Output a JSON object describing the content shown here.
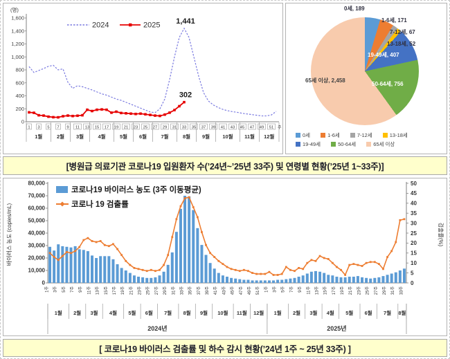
{
  "captions": {
    "top": "[병원급 의료기관 코로나19 입원환자 수(’24년~’25년 33주) 및 연령별 현황(’25년 1~33주)]",
    "bottom": "[ 코로나19 바이러스 검출률 및 하수 감시 현황(’24년 1주 ~ 25년 33주) ]"
  },
  "colors": {
    "band_bg": "#FFFFCC",
    "bar_blue": "#5B9BD5",
    "line_orange": "#ED7D31",
    "line_2024": "#7878DF",
    "line_2025": "#E60000"
  },
  "chart_data": [
    {
      "id": "hospitalized-weekly",
      "type": "line",
      "title": "병원급 의료기관 코로나19 입원환자 수",
      "unit_label": "(명)",
      "x_unit_label": "주",
      "ylim": [
        0,
        1600
      ],
      "ytick_step": 200,
      "legend_position": "top-left-inside",
      "series": [
        {
          "name": "2024",
          "color": "#7878DF",
          "style": "dashed",
          "values": [
            850,
            760,
            790,
            820,
            855,
            870,
            800,
            815,
            610,
            515,
            555,
            540,
            515,
            490,
            460,
            430,
            410,
            380,
            350,
            330,
            300,
            270,
            240,
            210,
            180,
            150,
            140,
            200,
            350,
            650,
            1000,
            1300,
            1441,
            1300,
            1000,
            700,
            450,
            320,
            260,
            220,
            190,
            170,
            155,
            145,
            130,
            120,
            110,
            100,
            90,
            90,
            105,
            160
          ]
        },
        {
          "name": "2025",
          "color": "#E60000",
          "style": "solid-marker",
          "values": [
            145,
            138,
            100,
            95,
            78,
            70,
            68,
            85,
            95,
            88,
            93,
            100,
            185,
            165,
            185,
            190,
            185,
            140,
            155,
            135,
            130,
            125,
            120,
            125,
            115,
            105,
            95,
            90,
            110,
            140,
            180,
            240,
            302
          ]
        }
      ],
      "annotations": [
        {
          "text": "1,441",
          "series": "2024",
          "week": 33
        },
        {
          "text": "302",
          "series": "2025",
          "week": 33
        }
      ],
      "months": [
        {
          "label": "1월",
          "weeks": 5
        },
        {
          "label": "2월",
          "weeks": 4
        },
        {
          "label": "3월",
          "weeks": 4
        },
        {
          "label": "4월",
          "weeks": 5
        },
        {
          "label": "5월",
          "weeks": 4
        },
        {
          "label": "6월",
          "weeks": 4
        },
        {
          "label": "7월",
          "weeks": 5
        },
        {
          "label": "8월",
          "weeks": 4
        },
        {
          "label": "9월",
          "weeks": 4
        },
        {
          "label": "10월",
          "weeks": 5
        },
        {
          "label": "11월",
          "weeks": 4
        },
        {
          "label": "12월",
          "weeks": 4
        }
      ]
    },
    {
      "id": "age-distribution",
      "type": "pie",
      "title": "연령별 현황(’25년 1~33주)",
      "slices": [
        {
          "label": "0세",
          "value": 189,
          "color": "#5B9BD5"
        },
        {
          "label": "1-6세",
          "value": 171,
          "color": "#ED7D31"
        },
        {
          "label": "7-12세",
          "value": 67,
          "color": "#A5A5A5"
        },
        {
          "label": "13-18세",
          "value": 52,
          "color": "#FFC000"
        },
        {
          "label": "19-49세",
          "value": 407,
          "color": "#4472C4"
        },
        {
          "label": "50-64세",
          "value": 756,
          "color": "#70AD47"
        },
        {
          "label": "65세 이상",
          "value": 2458,
          "color": "#F8CBAD"
        }
      ],
      "legend_rows": [
        4,
        3
      ]
    },
    {
      "id": "wastewater-surveillance",
      "type": "combo-bar-line",
      "week_suffix": "주",
      "left_axis": {
        "label": "바이러스 농도 (copies/mL)",
        "lim": [
          0,
          80000
        ],
        "step": 10000
      },
      "right_axis": {
        "label": "검출률(%)",
        "lim": [
          0,
          50
        ],
        "step": 5
      },
      "bar_series": {
        "name": "코로나19 바이러스 농도 (3주 이동평균)",
        "color": "#5B9BD5",
        "axis": "left",
        "values": [
          29000,
          26000,
          31000,
          29500,
          29000,
          28500,
          29500,
          27000,
          26500,
          25500,
          22000,
          20000,
          21500,
          21500,
          21500,
          19000,
          15000,
          12000,
          10000,
          8000,
          6000,
          5000,
          4500,
          4000,
          4000,
          4500,
          6000,
          9000,
          14500,
          24500,
          41000,
          59500,
          70000,
          69500,
          58500,
          44000,
          30500,
          22500,
          16000,
          11500,
          8000,
          6000,
          5000,
          4000,
          3500,
          3000,
          2500,
          2500,
          2000,
          2000,
          2000,
          2000,
          2000,
          2000,
          2500,
          2500,
          3000,
          3500,
          4000,
          5000,
          6000,
          7500,
          9000,
          9500,
          9000,
          8000,
          6500,
          6000,
          5000,
          4500,
          4500,
          5000,
          5000,
          5500,
          4500,
          4000,
          3500,
          4000,
          4500,
          5500,
          6500,
          7500,
          8500,
          10000,
          11500
        ]
      },
      "line_series": {
        "name": "코로나 19 검출률",
        "color": "#ED7D31",
        "axis": "right",
        "values": [
          15,
          13,
          11.5,
          13.5,
          15.5,
          15,
          16,
          18,
          21.5,
          22.5,
          21,
          20.5,
          21,
          19,
          18.5,
          19.5,
          17,
          14,
          11,
          9,
          7.5,
          7,
          6.5,
          6,
          6.5,
          6,
          6.5,
          9,
          14,
          23,
          32,
          38.5,
          42.5,
          43,
          38,
          33,
          25.5,
          19,
          15,
          13,
          11,
          9.5,
          8,
          7,
          6.5,
          6,
          6.5,
          6,
          5,
          4.5,
          4.5,
          4.5,
          5.5,
          4,
          4,
          4.5,
          8,
          6.5,
          6,
          7.5,
          7,
          10,
          11.5,
          11,
          13.5,
          12.5,
          12,
          10,
          8,
          6.5,
          4,
          9,
          9.5,
          9,
          8.5,
          10,
          10.5,
          10.5,
          9.5,
          7,
          13,
          16,
          20.5,
          31.5,
          32
        ]
      },
      "x_groups": [
        {
          "year": "2024년",
          "months": [
            {
              "label": "1월",
              "weeks": 5
            },
            {
              "label": "2월",
              "weeks": 4
            },
            {
              "label": "3월",
              "weeks": 4
            },
            {
              "label": "4월",
              "weeks": 5
            },
            {
              "label": "5월",
              "weeks": 4
            },
            {
              "label": "6월",
              "weeks": 4
            },
            {
              "label": "7월",
              "weeks": 5
            },
            {
              "label": "8월",
              "weeks": 4
            },
            {
              "label": "9월",
              "weeks": 4
            },
            {
              "label": "10월",
              "weeks": 5
            },
            {
              "label": "11월",
              "weeks": 4
            },
            {
              "label": "12월",
              "weeks": 4
            }
          ]
        },
        {
          "year": "2025년",
          "months": [
            {
              "label": "1월",
              "weeks": 5
            },
            {
              "label": "2월",
              "weeks": 4
            },
            {
              "label": "3월",
              "weeks": 4
            },
            {
              "label": "4월",
              "weeks": 4
            },
            {
              "label": "5월",
              "weeks": 5
            },
            {
              "label": "6월",
              "weeks": 4
            },
            {
              "label": "7월",
              "weeks": 5
            },
            {
              "label": "8월",
              "weeks": 2
            }
          ]
        }
      ]
    }
  ]
}
